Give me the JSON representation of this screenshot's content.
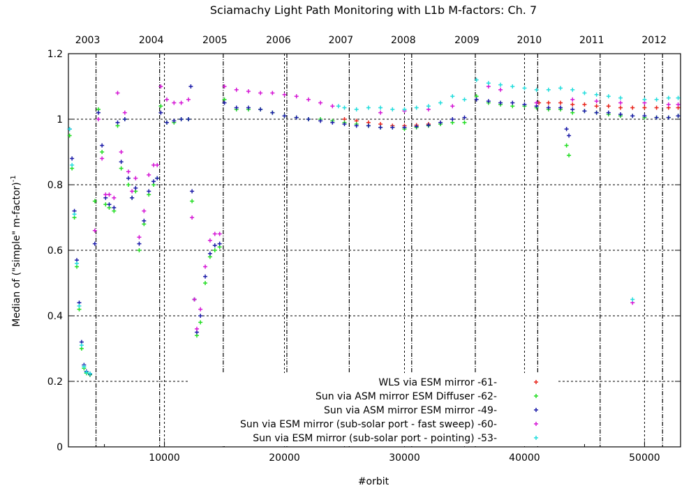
{
  "chart_data": {
    "type": "scatter",
    "title": "Sciamachy Light Path Monitoring with L1b M-factors: Ch. 7",
    "xlabel": "#orbit",
    "ylabel": "Median of (\"simple\" m-factor)",
    "ylabel_superscript": "-1",
    "xlim": [
      2000,
      53000
    ],
    "ylim": [
      0,
      1.2
    ],
    "x_ticks": [
      10000,
      20000,
      30000,
      40000,
      50000
    ],
    "x_tick_labels": [
      "10000",
      "20000",
      "30000",
      "40000",
      "50000"
    ],
    "y_ticks": [
      0,
      0.2,
      0.4,
      0.6,
      0.8,
      1,
      1.2
    ],
    "y_tick_labels": [
      "0",
      "0.2",
      "0.4",
      "0.6",
      "0.8",
      "1",
      "1.2"
    ],
    "top_axis": {
      "labels": [
        {
          "year": "2003",
          "orbit": 4300
        },
        {
          "year": "2004",
          "orbit": 9600
        },
        {
          "year": "2005",
          "orbit": 14900
        },
        {
          "year": "2006",
          "orbit": 20200
        },
        {
          "year": "2007",
          "orbit": 25400
        },
        {
          "year": "2008",
          "orbit": 30600
        },
        {
          "year": "2009",
          "orbit": 35900
        },
        {
          "year": "2010",
          "orbit": 41100
        },
        {
          "year": "2011",
          "orbit": 46300
        },
        {
          "year": "2012",
          "orbit": 51500
        }
      ]
    },
    "grid": true,
    "legend_position": "bottom-right",
    "series": [
      {
        "name": "WLS via ESM mirror -61-",
        "color": "#e8241a",
        "marker": "+",
        "points": [
          [
            25000,
            1.0
          ],
          [
            26000,
            0.995
          ],
          [
            27000,
            0.99
          ],
          [
            28000,
            0.985
          ],
          [
            29000,
            0.98
          ],
          [
            30000,
            0.98
          ],
          [
            31000,
            0.982
          ],
          [
            32000,
            0.985
          ],
          [
            41200,
            1.05
          ],
          [
            42000,
            1.05
          ],
          [
            43000,
            1.05
          ],
          [
            44000,
            1.045
          ],
          [
            45000,
            1.045
          ],
          [
            46000,
            1.04
          ],
          [
            47000,
            1.04
          ],
          [
            48000,
            1.035
          ],
          [
            49000,
            1.035
          ],
          [
            50000,
            1.035
          ],
          [
            51000,
            1.035
          ],
          [
            52000,
            1.035
          ],
          [
            52800,
            1.035
          ]
        ]
      },
      {
        "name": "Sun via ASM mirror  ESM Diffuser -62-",
        "color": "#22dd22",
        "marker": "+",
        "points": [
          [
            2100,
            0.95
          ],
          [
            2300,
            0.85
          ],
          [
            2500,
            0.7
          ],
          [
            2700,
            0.55
          ],
          [
            2900,
            0.42
          ],
          [
            3100,
            0.3
          ],
          [
            3300,
            0.24
          ],
          [
            3500,
            0.225
          ],
          [
            3800,
            0.22
          ],
          [
            4200,
            0.75
          ],
          [
            4500,
            1.03
          ],
          [
            4800,
            0.9
          ],
          [
            5100,
            0.74
          ],
          [
            5400,
            0.73
          ],
          [
            5800,
            0.72
          ],
          [
            6100,
            0.98
          ],
          [
            6400,
            0.85
          ],
          [
            6700,
            1.0
          ],
          [
            7000,
            0.8
          ],
          [
            7300,
            0.76
          ],
          [
            7600,
            0.78
          ],
          [
            7900,
            0.6
          ],
          [
            8300,
            0.68
          ],
          [
            8700,
            0.77
          ],
          [
            9100,
            0.8
          ],
          [
            9400,
            0.82
          ],
          [
            9700,
            1.04
          ],
          [
            10200,
            0.99
          ],
          [
            10800,
            0.99
          ],
          [
            11400,
            1.0
          ],
          [
            12000,
            1.0
          ],
          [
            12300,
            0.75
          ],
          [
            12500,
            0.45
          ],
          [
            12700,
            0.34
          ],
          [
            13000,
            0.38
          ],
          [
            13400,
            0.5
          ],
          [
            13800,
            0.58
          ],
          [
            14200,
            0.6
          ],
          [
            14600,
            0.61
          ],
          [
            15000,
            1.06
          ],
          [
            16000,
            1.03
          ],
          [
            17000,
            1.03
          ],
          [
            18000,
            1.03
          ],
          [
            19000,
            1.02
          ],
          [
            20000,
            1.01
          ],
          [
            21000,
            1.005
          ],
          [
            22000,
            1.0
          ],
          [
            23000,
            1.0
          ],
          [
            24000,
            0.995
          ],
          [
            25000,
            0.99
          ],
          [
            26000,
            0.985
          ],
          [
            27000,
            0.98
          ],
          [
            28000,
            0.975
          ],
          [
            29000,
            0.975
          ],
          [
            30000,
            0.97
          ],
          [
            31000,
            0.975
          ],
          [
            32000,
            0.98
          ],
          [
            33000,
            0.985
          ],
          [
            34000,
            0.99
          ],
          [
            35000,
            0.99
          ],
          [
            36000,
            1.07
          ],
          [
            37000,
            1.05
          ],
          [
            38000,
            1.045
          ],
          [
            39000,
            1.04
          ],
          [
            40000,
            1.04
          ],
          [
            41000,
            1.035
          ],
          [
            42000,
            1.03
          ],
          [
            43000,
            1.03
          ],
          [
            43500,
            0.92
          ],
          [
            43700,
            0.89
          ],
          [
            44000,
            1.02
          ],
          [
            45000,
            1.025
          ],
          [
            46000,
            1.02
          ],
          [
            47000,
            1.015
          ],
          [
            48000,
            1.01
          ],
          [
            49000,
            1.01
          ],
          [
            50000,
            1.005
          ],
          [
            51000,
            1.005
          ],
          [
            52000,
            1.005
          ],
          [
            52800,
            1.01
          ]
        ]
      },
      {
        "name": "Sun via ASM mirror  ESM mirror -49-",
        "color": "#1a1aa8",
        "marker": "+",
        "points": [
          [
            2100,
            0.97
          ],
          [
            2300,
            0.88
          ],
          [
            2500,
            0.72
          ],
          [
            2700,
            0.57
          ],
          [
            2900,
            0.44
          ],
          [
            3100,
            0.32
          ],
          [
            3300,
            0.25
          ],
          [
            3500,
            0.23
          ],
          [
            3800,
            0.222
          ],
          [
            4200,
            0.62
          ],
          [
            4500,
            1.02
          ],
          [
            4800,
            0.92
          ],
          [
            5100,
            0.76
          ],
          [
            5400,
            0.74
          ],
          [
            5800,
            0.73
          ],
          [
            6100,
            0.99
          ],
          [
            6400,
            0.87
          ],
          [
            6700,
            1.0
          ],
          [
            7000,
            0.82
          ],
          [
            7300,
            0.76
          ],
          [
            7600,
            0.79
          ],
          [
            7900,
            0.62
          ],
          [
            8300,
            0.69
          ],
          [
            8700,
            0.78
          ],
          [
            9100,
            0.81
          ],
          [
            9400,
            0.82
          ],
          [
            9700,
            1.02
          ],
          [
            10200,
            0.99
          ],
          [
            10800,
            0.995
          ],
          [
            11400,
            1.0
          ],
          [
            12000,
            1.0
          ],
          [
            12200,
            1.1
          ],
          [
            12300,
            0.78
          ],
          [
            12500,
            0.45
          ],
          [
            12700,
            0.35
          ],
          [
            13000,
            0.4
          ],
          [
            13400,
            0.52
          ],
          [
            13800,
            0.59
          ],
          [
            14200,
            0.615
          ],
          [
            14600,
            0.62
          ],
          [
            15000,
            1.05
          ],
          [
            16000,
            1.035
          ],
          [
            17000,
            1.035
          ],
          [
            18000,
            1.03
          ],
          [
            19000,
            1.02
          ],
          [
            20000,
            1.01
          ],
          [
            21000,
            1.005
          ],
          [
            22000,
            1.0
          ],
          [
            23000,
            0.995
          ],
          [
            24000,
            0.99
          ],
          [
            25000,
            0.985
          ],
          [
            26000,
            0.98
          ],
          [
            27000,
            0.98
          ],
          [
            28000,
            0.975
          ],
          [
            29000,
            0.975
          ],
          [
            30000,
            0.975
          ],
          [
            31000,
            0.978
          ],
          [
            32000,
            0.982
          ],
          [
            33000,
            0.99
          ],
          [
            34000,
            1.0
          ],
          [
            35000,
            1.005
          ],
          [
            36000,
            1.06
          ],
          [
            37000,
            1.055
          ],
          [
            38000,
            1.05
          ],
          [
            39000,
            1.05
          ],
          [
            40000,
            1.045
          ],
          [
            41000,
            1.04
          ],
          [
            42000,
            1.035
          ],
          [
            43000,
            1.035
          ],
          [
            43500,
            0.97
          ],
          [
            43700,
            0.95
          ],
          [
            44000,
            1.03
          ],
          [
            45000,
            1.025
          ],
          [
            46000,
            1.02
          ],
          [
            47000,
            1.02
          ],
          [
            48000,
            1.015
          ],
          [
            49000,
            1.01
          ],
          [
            50000,
            1.01
          ],
          [
            51000,
            1.005
          ],
          [
            52000,
            1.005
          ],
          [
            52800,
            1.01
          ]
        ]
      },
      {
        "name": "Sun via ESM mirror (sub-solar port - fast sweep) -60-",
        "color": "#d516d5",
        "marker": "+",
        "points": [
          [
            4200,
            0.66
          ],
          [
            4500,
            1.0
          ],
          [
            4800,
            0.88
          ],
          [
            5100,
            0.77
          ],
          [
            5400,
            0.77
          ],
          [
            5800,
            0.76
          ],
          [
            6100,
            1.08
          ],
          [
            6400,
            0.9
          ],
          [
            6700,
            1.02
          ],
          [
            7000,
            0.84
          ],
          [
            7300,
            0.78
          ],
          [
            7600,
            0.82
          ],
          [
            7900,
            0.64
          ],
          [
            8300,
            0.72
          ],
          [
            8700,
            0.83
          ],
          [
            9100,
            0.86
          ],
          [
            9400,
            0.86
          ],
          [
            9700,
            1.1
          ],
          [
            10200,
            1.06
          ],
          [
            10800,
            1.05
          ],
          [
            11400,
            1.05
          ],
          [
            12000,
            1.06
          ],
          [
            12300,
            0.7
          ],
          [
            12500,
            0.45
          ],
          [
            12700,
            0.36
          ],
          [
            13000,
            0.42
          ],
          [
            13400,
            0.55
          ],
          [
            13800,
            0.63
          ],
          [
            14200,
            0.65
          ],
          [
            14600,
            0.65
          ],
          [
            15000,
            1.1
          ],
          [
            16000,
            1.09
          ],
          [
            17000,
            1.085
          ],
          [
            18000,
            1.08
          ],
          [
            19000,
            1.08
          ],
          [
            20000,
            1.075
          ],
          [
            21000,
            1.07
          ],
          [
            22000,
            1.06
          ],
          [
            23000,
            1.05
          ],
          [
            24000,
            1.04
          ],
          [
            28000,
            1.02
          ],
          [
            30000,
            1.025
          ],
          [
            32000,
            1.03
          ],
          [
            34000,
            1.04
          ],
          [
            37000,
            1.1
          ],
          [
            38000,
            1.09
          ],
          [
            41000,
            1.05
          ],
          [
            44000,
            1.06
          ],
          [
            46000,
            1.055
          ],
          [
            48000,
            1.05
          ],
          [
            49000,
            0.44
          ],
          [
            50000,
            1.05
          ],
          [
            52000,
            1.045
          ],
          [
            52800,
            1.045
          ]
        ]
      },
      {
        "name": "Sun via ESM mirror (sub-solar port - pointing) -53-",
        "color": "#22dddd",
        "marker": "+",
        "points": [
          [
            2100,
            0.97
          ],
          [
            2300,
            0.86
          ],
          [
            2500,
            0.71
          ],
          [
            2700,
            0.56
          ],
          [
            2900,
            0.43
          ],
          [
            3100,
            0.31
          ],
          [
            3300,
            0.245
          ],
          [
            3500,
            0.228
          ],
          [
            3800,
            0.224
          ],
          [
            24500,
            1.04
          ],
          [
            25000,
            1.035
          ],
          [
            26000,
            1.03
          ],
          [
            27000,
            1.035
          ],
          [
            28000,
            1.035
          ],
          [
            29000,
            1.03
          ],
          [
            30000,
            1.03
          ],
          [
            31000,
            1.035
          ],
          [
            32000,
            1.04
          ],
          [
            33000,
            1.05
          ],
          [
            34000,
            1.07
          ],
          [
            35000,
            1.06
          ],
          [
            36000,
            1.12
          ],
          [
            37000,
            1.11
          ],
          [
            38000,
            1.105
          ],
          [
            39000,
            1.1
          ],
          [
            40000,
            1.095
          ],
          [
            41000,
            1.09
          ],
          [
            42000,
            1.09
          ],
          [
            43000,
            1.095
          ],
          [
            44000,
            1.09
          ],
          [
            45000,
            1.08
          ],
          [
            46000,
            1.075
          ],
          [
            47000,
            1.07
          ],
          [
            48000,
            1.065
          ],
          [
            49000,
            0.45
          ],
          [
            50000,
            1.06
          ],
          [
            51000,
            1.06
          ],
          [
            52000,
            1.065
          ],
          [
            52800,
            1.065
          ]
        ]
      }
    ]
  }
}
